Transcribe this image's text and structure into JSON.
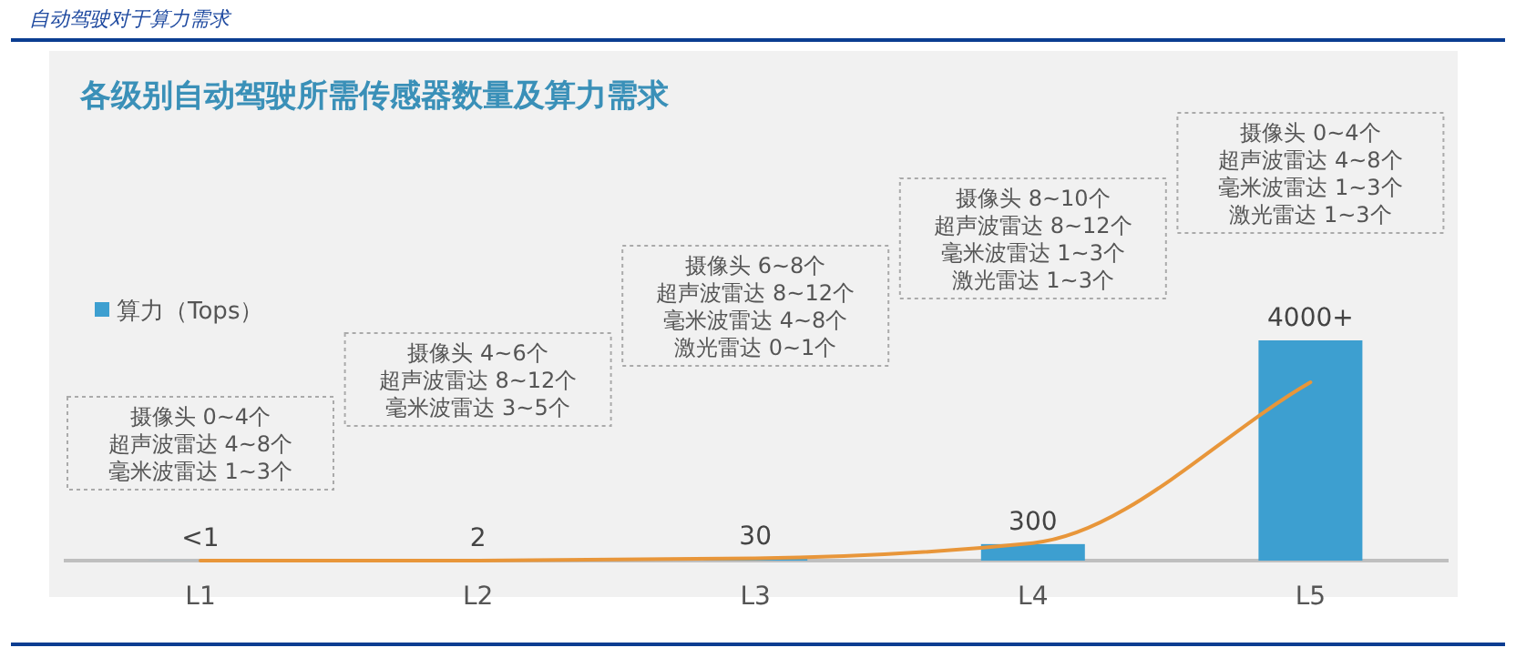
{
  "chart_data": {
    "type": "bar",
    "title": "自动驾驶对于算力需求",
    "subtitle": "各级别自动驾驶所需传感器数量及算力需求",
    "categories": [
      "L1",
      "L2",
      "L3",
      "L4",
      "L5"
    ],
    "legend": "top left",
    "series": [
      {
        "name": "算力（Tops）",
        "color": "#3d9fd0",
        "values": [
          1,
          2,
          30,
          300,
          4000
        ],
        "value_labels": [
          "<1",
          "2",
          "30",
          "300",
          "4000+"
        ]
      },
      {
        "type": "line",
        "color": "#e8963a",
        "values": [
          0,
          0,
          40,
          320,
          3240
        ]
      }
    ],
    "annotations": [
      "摄像头 0~4个",
      "超声波雷达 4~8个",
      "毫米波雷达 1~3个",
      "摄像头 4~6个",
      "超声波雷达 8~12个",
      "毫米波雷达 3~5个",
      "摄像头 6~8个",
      "超声波雷达 8~12个",
      "毫米波雷达 4~8个",
      "激光雷达 0~1个",
      "摄像头 8~10个",
      "超声波雷达 8~12个",
      "毫米波雷达 1~3个",
      "激光雷达 1~3个",
      "摄像头 0~4个",
      "超声波雷达 4~8个",
      "毫米波雷达 1~3个",
      "激光雷达 1~3个"
    ]
  }
}
